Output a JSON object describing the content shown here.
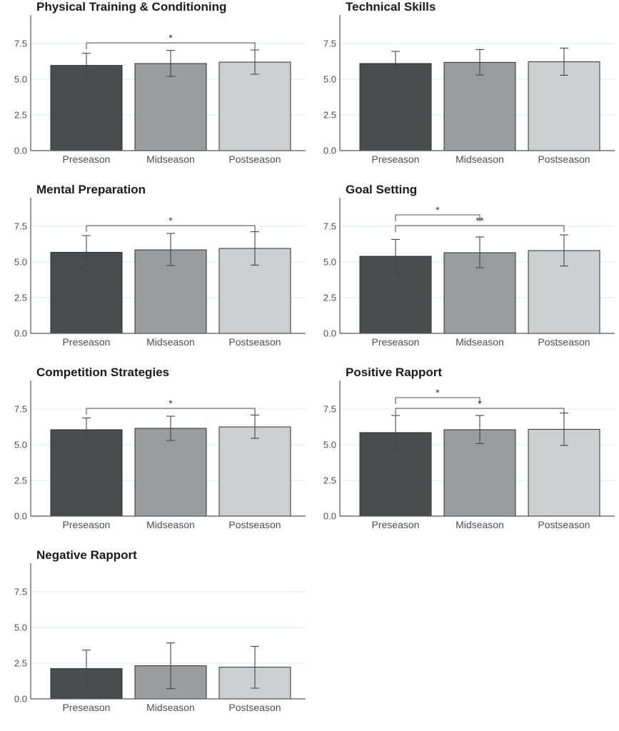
{
  "chart_data": [
    {
      "type": "bar",
      "title": "Physical Training & Conditioning",
      "categories": [
        "Preseason",
        "Midseason",
        "Postseason"
      ],
      "values": [
        5.97,
        6.1,
        6.2
      ],
      "error_low": [
        5.12,
        5.2,
        5.35
      ],
      "error_high": [
        6.82,
        7.02,
        7.05
      ],
      "ylim": [
        0,
        9.5
      ],
      "yticks": [
        "0.0",
        "2.5",
        "5.0",
        "7.5"
      ],
      "significance": [
        {
          "from": 0,
          "to": 2,
          "label": "*"
        }
      ]
    },
    {
      "type": "bar",
      "title": "Technical Skills",
      "categories": [
        "Preseason",
        "Midseason",
        "Postseason"
      ],
      "values": [
        6.1,
        6.18,
        6.22
      ],
      "error_low": [
        5.25,
        5.3,
        5.28
      ],
      "error_high": [
        6.95,
        7.08,
        7.18
      ],
      "ylim": [
        0,
        9.5
      ],
      "yticks": [
        "0.0",
        "2.5",
        "5.0",
        "7.5"
      ],
      "significance": []
    },
    {
      "type": "bar",
      "title": "Mental Preparation",
      "categories": [
        "Preseason",
        "Midseason",
        "Postseason"
      ],
      "values": [
        5.68,
        5.85,
        5.95
      ],
      "error_low": [
        4.55,
        4.75,
        4.78
      ],
      "error_high": [
        6.85,
        7.0,
        7.12
      ],
      "ylim": [
        0,
        9.5
      ],
      "yticks": [
        "0.0",
        "2.5",
        "5.0",
        "7.5"
      ],
      "significance": [
        {
          "from": 0,
          "to": 2,
          "label": "*"
        }
      ]
    },
    {
      "type": "bar",
      "title": "Goal Setting",
      "categories": [
        "Preseason",
        "Midseason",
        "Postseason"
      ],
      "values": [
        5.4,
        5.65,
        5.8
      ],
      "error_low": [
        4.22,
        4.6,
        4.72
      ],
      "error_high": [
        6.58,
        6.75,
        6.9
      ],
      "ylim": [
        0,
        9.5
      ],
      "yticks": [
        "0.0",
        "2.5",
        "5.0",
        "7.5"
      ],
      "significance": [
        {
          "from": 0,
          "to": 1,
          "label": "*"
        },
        {
          "from": 0,
          "to": 2,
          "label": "**"
        }
      ]
    },
    {
      "type": "bar",
      "title": "Competition Strategies",
      "categories": [
        "Preseason",
        "Midseason",
        "Postseason"
      ],
      "values": [
        6.05,
        6.15,
        6.25
      ],
      "error_low": [
        5.25,
        5.3,
        5.45
      ],
      "error_high": [
        6.88,
        7.0,
        7.08
      ],
      "ylim": [
        0,
        9.5
      ],
      "yticks": [
        "0.0",
        "2.5",
        "5.0",
        "7.5"
      ],
      "significance": [
        {
          "from": 0,
          "to": 2,
          "label": "*"
        }
      ]
    },
    {
      "type": "bar",
      "title": "Positive Rapport",
      "categories": [
        "Preseason",
        "Midseason",
        "Postseason"
      ],
      "values": [
        5.85,
        6.05,
        6.08
      ],
      "error_low": [
        4.65,
        5.08,
        4.95
      ],
      "error_high": [
        7.05,
        7.05,
        7.22
      ],
      "ylim": [
        0,
        9.5
      ],
      "yticks": [
        "0.0",
        "2.5",
        "5.0",
        "7.5"
      ],
      "significance": [
        {
          "from": 0,
          "to": 1,
          "label": "*"
        },
        {
          "from": 0,
          "to": 2,
          "label": "*"
        }
      ]
    },
    {
      "type": "bar",
      "title": "Negative Rapport",
      "categories": [
        "Preseason",
        "Midseason",
        "Postseason"
      ],
      "values": [
        2.12,
        2.32,
        2.22
      ],
      "error_low": [
        0.82,
        0.72,
        0.75
      ],
      "error_high": [
        3.42,
        3.92,
        3.68
      ],
      "ylim": [
        0,
        9.5
      ],
      "yticks": [
        "0.0",
        "2.5",
        "5.0",
        "7.5"
      ],
      "significance": []
    }
  ],
  "colors": {
    "bars": [
      "#4a4d4e",
      "#999d9d",
      "#cdcfd0"
    ],
    "grid": "#e3e8ea",
    "axis": "#555555"
  }
}
